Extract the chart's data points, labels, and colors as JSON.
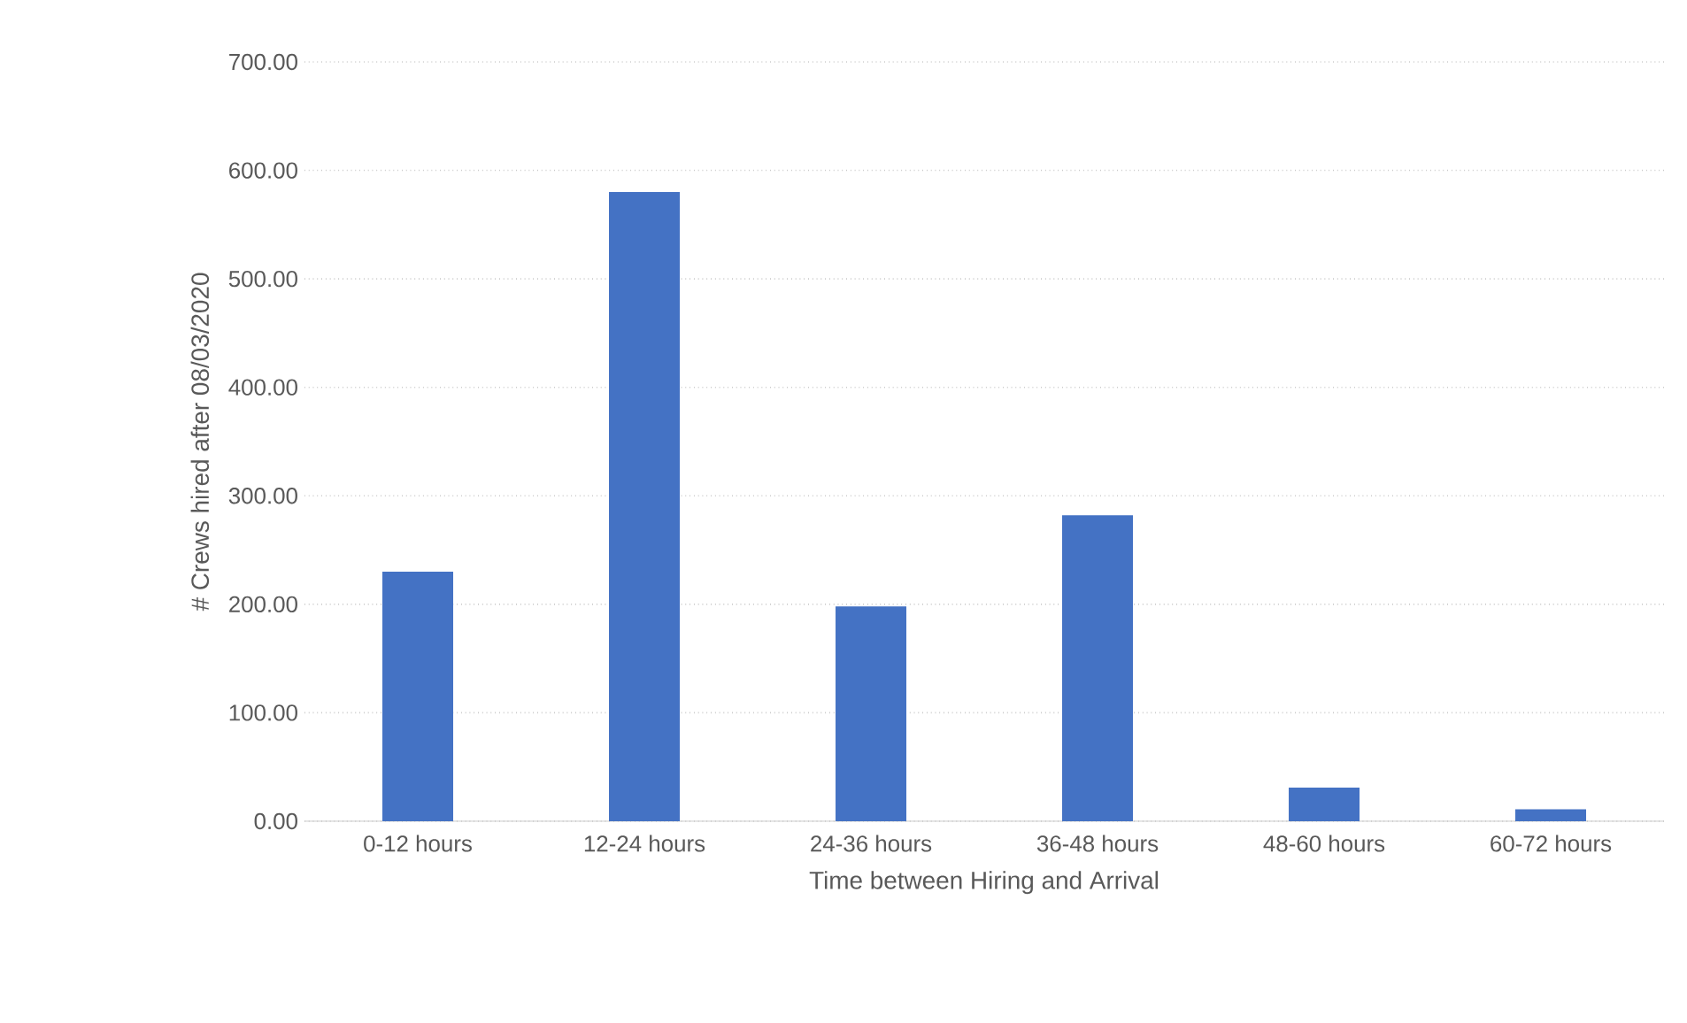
{
  "chart_data": {
    "type": "bar",
    "xlabel": "Time between  Hiring and Arrival",
    "ylabel": "# Crews hired after 08/03/2020",
    "categories": [
      "0-12 hours",
      "12-24 hours",
      "24-36 hours",
      "36-48 hours",
      "48-60 hours",
      "60-72 hours"
    ],
    "values": [
      230,
      580,
      198,
      282,
      31,
      11
    ],
    "color": "#4472c4",
    "ylim": [
      0,
      700
    ],
    "yticks": [
      {
        "value": 0,
        "label": "0.00"
      },
      {
        "value": 100,
        "label": "100.00"
      },
      {
        "value": 200,
        "label": "200.00"
      },
      {
        "value": 300,
        "label": "300.00"
      },
      {
        "value": 400,
        "label": "400.00"
      },
      {
        "value": 500,
        "label": "500.00"
      },
      {
        "value": 600,
        "label": "600.00"
      },
      {
        "value": 700,
        "label": "700.00"
      }
    ],
    "grid": "y"
  }
}
